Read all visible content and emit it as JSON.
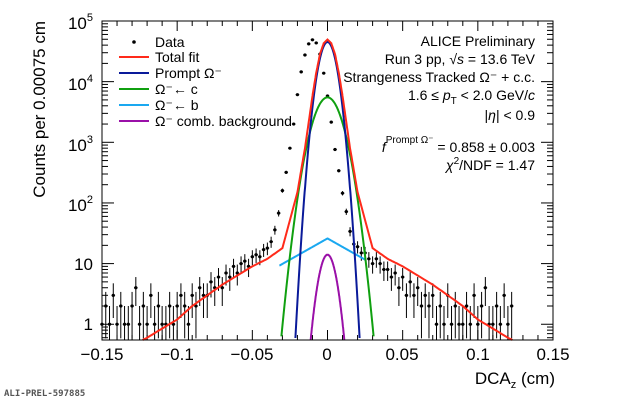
{
  "chart_data": {
    "type": "scatter",
    "xlabel": {
      "main": "DCA",
      "sub": "z",
      "unit": " (cm)"
    },
    "ylabel": "Counts per 0.00075 cm",
    "xlim": [
      -0.15,
      0.15
    ],
    "ylim": [
      0.55,
      100000
    ],
    "yscale": "log",
    "x_ticks": [
      "−0.15",
      "−0.1",
      "−0.05",
      "0",
      "0.05",
      "0.1",
      "0.15"
    ],
    "x_tick_values": [
      -0.15,
      -0.1,
      -0.05,
      0,
      0.05,
      0.1,
      0.15
    ],
    "y_ticks": [
      {
        "value": 1,
        "base": "1",
        "exp": ""
      },
      {
        "value": 10,
        "base": "10",
        "exp": ""
      },
      {
        "value": 100,
        "base": "10",
        "exp": "2"
      },
      {
        "value": 1000,
        "base": "10",
        "exp": "3"
      },
      {
        "value": 10000,
        "base": "10",
        "exp": "4"
      },
      {
        "value": 100000,
        "base": "10",
        "exp": "5"
      }
    ],
    "legend": {
      "placement": "top-left",
      "entries": [
        {
          "label": "Data",
          "color": "#000000",
          "kind": "marker"
        },
        {
          "label": "Total fit",
          "color": "#ff2a1a",
          "kind": "line"
        },
        {
          "label": "Prompt Ω⁻",
          "color": "#0a1a9a",
          "kind": "line"
        },
        {
          "label": "Ω⁻← c",
          "color": "#10a010",
          "kind": "line"
        },
        {
          "label": "Ω⁻← b",
          "color": "#1aa8f0",
          "kind": "line"
        },
        {
          "label": "Ω⁻ comb. background",
          "color": "#9a10a8",
          "kind": "line"
        }
      ]
    },
    "annotations": {
      "l1": "ALICE Preliminary",
      "l2a": "Run 3 pp, ",
      "l2b": "√s",
      "l2c": " = 13.6 TeV",
      "l3": "Strangeness Tracked Ω⁻ + c.c.",
      "l4a": "1.6 ≤ ",
      "l4b": "p",
      "l4c": "T",
      "l4d": " < 2.0 GeV/",
      "l4e": "c",
      "l5a": "|",
      "l5b": "η",
      "l5c": "| < 0.9",
      "l6a": "f",
      "l6b": "Prompt Ω⁻",
      "l6c": " = 0.858 ± 0.003",
      "l7a": "χ",
      "l7b": "2",
      "l7c": "/NDF = 1.47"
    },
    "data": {
      "x_start": -0.15,
      "x_step": 0.0025,
      "y": [
        1,
        2,
        1,
        3,
        1,
        2,
        1,
        1,
        2,
        4,
        1,
        2,
        1,
        3,
        1,
        2,
        1,
        1,
        2,
        1,
        2,
        3,
        2,
        1,
        3,
        2,
        4,
        3,
        3,
        5,
        4,
        6,
        4,
        7,
        6,
        9,
        7,
        10,
        11,
        9,
        13,
        14,
        13,
        17,
        18,
        23,
        36,
        68,
        160,
        320,
        800,
        2000,
        6100,
        14500,
        27500,
        42000,
        49000,
        43500,
        28500,
        13800,
        5800,
        2150,
        760,
        340,
        145,
        72,
        34,
        21,
        19,
        15,
        15,
        12,
        10,
        12,
        10,
        8,
        8,
        6,
        7,
        4,
        6,
        3,
        5,
        3,
        4,
        2,
        3,
        2,
        3,
        1,
        2,
        1,
        3,
        1,
        2,
        1,
        1,
        2,
        1,
        3,
        1,
        2,
        4,
        1,
        1,
        2,
        1,
        3,
        1,
        2
      ]
    },
    "total_fit": {
      "x": [
        -0.13,
        -0.12,
        -0.1,
        -0.09,
        -0.07,
        -0.05,
        -0.04,
        -0.03,
        -0.02,
        -0.015,
        -0.01,
        -0.0075,
        -0.005,
        -0.0025,
        0,
        0.0025,
        0.005,
        0.0075,
        0.01,
        0.015,
        0.02,
        0.03,
        0.04,
        0.05,
        0.07,
        0.09,
        0.1,
        0.12,
        0.13
      ],
      "y": [
        0.45,
        0.6,
        1.2,
        2,
        4.5,
        9,
        12,
        18,
        150,
        800,
        5800,
        14000,
        28500,
        43000,
        49500,
        43000,
        28500,
        14000,
        5800,
        800,
        150,
        18,
        12,
        9,
        4.5,
        2,
        1.2,
        0.6,
        0.45
      ]
    },
    "components": {
      "prompt": {
        "amplitude": 45000,
        "sigma": 0.0045
      },
      "from_c": {
        "amplitude": 5500,
        "sigma": 0.0072
      },
      "from_b": {
        "amplitude": 26,
        "decay": 0.031,
        "range": [
          -0.032,
          0.025
        ]
      },
      "comb_background": {
        "amplitude": 14,
        "sigma": 0.0044,
        "range": [
          -0.0115,
          0.0115
        ]
      }
    }
  },
  "watermark": "ALI-PREL-597885"
}
